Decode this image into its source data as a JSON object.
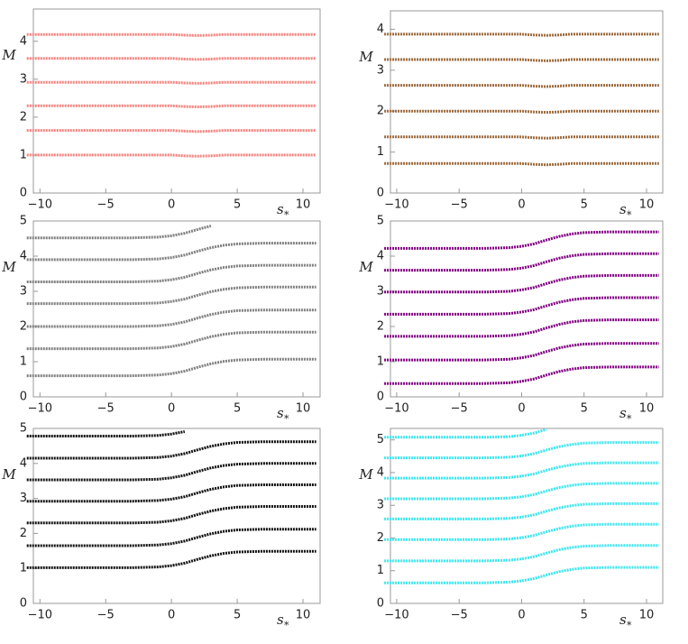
{
  "chart_data": [
    {
      "type": "line",
      "y_label": "M",
      "x_label": "s",
      "x_label_subscript": "*",
      "xlim": [
        -10.5,
        11.3
      ],
      "ylim": [
        0,
        4.85
      ],
      "xticks": [
        {
          "value": -10,
          "label": "−10"
        },
        {
          "value": -5,
          "label": "−5"
        },
        0,
        5,
        10
      ],
      "yticks": [
        0,
        1,
        2,
        3,
        4
      ],
      "x": [
        -11,
        -9,
        -7,
        -5,
        -3,
        -1,
        0,
        1,
        2,
        3,
        4,
        5,
        7,
        9,
        11
      ],
      "color": "#f4837d",
      "series": [
        {
          "values": [
            1,
            1,
            1,
            1,
            1,
            1,
            1,
            0.98,
            0.97,
            0.98,
            1,
            1,
            1,
            1,
            1
          ]
        },
        {
          "values": [
            1.65,
            1.65,
            1.65,
            1.65,
            1.65,
            1.65,
            1.65,
            1.63,
            1.62,
            1.63,
            1.65,
            1.65,
            1.65,
            1.65,
            1.65
          ]
        },
        {
          "values": [
            2.3,
            2.3,
            2.3,
            2.3,
            2.3,
            2.3,
            2.3,
            2.28,
            2.27,
            2.28,
            2.3,
            2.3,
            2.3,
            2.3,
            2.3
          ]
        },
        {
          "values": [
            2.92,
            2.92,
            2.92,
            2.92,
            2.92,
            2.92,
            2.92,
            2.9,
            2.89,
            2.9,
            2.92,
            2.92,
            2.92,
            2.92,
            2.92
          ]
        },
        {
          "values": [
            3.55,
            3.55,
            3.55,
            3.55,
            3.55,
            3.55,
            3.55,
            3.53,
            3.52,
            3.53,
            3.55,
            3.55,
            3.55,
            3.55,
            3.55
          ]
        },
        {
          "values": [
            4.18,
            4.18,
            4.18,
            4.18,
            4.18,
            4.18,
            4.18,
            4.16,
            4.15,
            4.16,
            4.18,
            4.18,
            4.18,
            4.18,
            4.18
          ]
        }
      ]
    },
    {
      "type": "line",
      "y_label": "M",
      "x_label": "s",
      "x_label_subscript": "*",
      "xlim": [
        -10.5,
        11.3
      ],
      "ylim": [
        0,
        4.45
      ],
      "xticks": [
        {
          "value": -10,
          "label": "−10"
        },
        {
          "value": -5,
          "label": "−5"
        },
        0,
        5,
        10
      ],
      "yticks": [
        0,
        1,
        2,
        3,
        4
      ],
      "x": [
        -11,
        -9,
        -7,
        -5,
        -3,
        -1,
        0,
        1,
        2,
        3,
        4,
        5,
        7,
        9,
        11
      ],
      "color": "#9c6a3c",
      "series": [
        {
          "values": [
            0.72,
            0.72,
            0.72,
            0.72,
            0.72,
            0.72,
            0.72,
            0.7,
            0.69,
            0.7,
            0.72,
            0.72,
            0.72,
            0.72,
            0.72
          ]
        },
        {
          "values": [
            1.37,
            1.37,
            1.37,
            1.37,
            1.37,
            1.37,
            1.37,
            1.35,
            1.34,
            1.35,
            1.37,
            1.37,
            1.37,
            1.37,
            1.37
          ]
        },
        {
          "values": [
            2,
            2,
            2,
            2,
            2,
            2,
            2,
            1.98,
            1.97,
            1.98,
            2,
            2,
            2,
            2,
            2
          ]
        },
        {
          "values": [
            2.63,
            2.63,
            2.63,
            2.63,
            2.63,
            2.63,
            2.63,
            2.61,
            2.6,
            2.61,
            2.63,
            2.63,
            2.63,
            2.63,
            2.63
          ]
        },
        {
          "values": [
            3.26,
            3.26,
            3.26,
            3.26,
            3.26,
            3.26,
            3.26,
            3.24,
            3.23,
            3.24,
            3.26,
            3.26,
            3.26,
            3.26,
            3.26
          ]
        },
        {
          "values": [
            3.88,
            3.88,
            3.88,
            3.88,
            3.88,
            3.88,
            3.88,
            3.86,
            3.85,
            3.86,
            3.88,
            3.88,
            3.88,
            3.88,
            3.88
          ]
        }
      ]
    },
    {
      "type": "line",
      "y_label": "M",
      "x_label": "s",
      "x_label_subscript": "*",
      "xlim": [
        -10.5,
        11.3
      ],
      "ylim": [
        0,
        5
      ],
      "xticks": [
        {
          "value": -10,
          "label": "−10"
        },
        {
          "value": -5,
          "label": "−5"
        },
        0,
        5,
        10
      ],
      "yticks": [
        0,
        1,
        2,
        3,
        4,
        5
      ],
      "x": [
        -11,
        -9,
        -7,
        -5,
        -3,
        -1,
        0,
        1,
        2,
        3,
        4,
        5,
        7,
        9,
        11
      ],
      "color": "#808080",
      "series": [
        {
          "values": [
            0.6,
            0.6,
            0.6,
            0.6,
            0.6,
            0.62,
            0.66,
            0.73,
            0.84,
            0.94,
            1.01,
            1.05,
            1.07,
            1.07,
            1.07
          ]
        },
        {
          "values": [
            1.37,
            1.37,
            1.37,
            1.37,
            1.37,
            1.39,
            1.43,
            1.5,
            1.61,
            1.71,
            1.78,
            1.82,
            1.84,
            1.84,
            1.84
          ]
        },
        {
          "values": [
            2,
            2,
            2,
            2,
            2,
            2.02,
            2.06,
            2.13,
            2.24,
            2.34,
            2.41,
            2.45,
            2.47,
            2.47,
            2.47
          ]
        },
        {
          "values": [
            2.65,
            2.65,
            2.65,
            2.65,
            2.65,
            2.67,
            2.71,
            2.78,
            2.89,
            2.99,
            3.06,
            3.1,
            3.12,
            3.12,
            3.12
          ]
        },
        {
          "values": [
            3.27,
            3.27,
            3.27,
            3.27,
            3.27,
            3.29,
            3.33,
            3.4,
            3.51,
            3.61,
            3.68,
            3.72,
            3.74,
            3.74,
            3.74
          ]
        },
        {
          "values": [
            3.9,
            3.9,
            3.9,
            3.9,
            3.9,
            3.92,
            3.96,
            4.03,
            4.14,
            4.24,
            4.31,
            4.35,
            4.37,
            4.37,
            4.37
          ]
        },
        {
          "values": [
            4.52,
            4.52,
            4.52,
            4.52,
            4.52,
            4.54,
            4.58,
            4.65,
            4.76,
            4.86,
            null,
            null,
            null,
            null,
            null
          ]
        }
      ]
    },
    {
      "type": "line",
      "y_label": "M",
      "x_label": "s",
      "x_label_subscript": "*",
      "xlim": [
        -10.5,
        11.3
      ],
      "ylim": [
        0,
        5
      ],
      "xticks": [
        {
          "value": -10,
          "label": "−10"
        },
        {
          "value": -5,
          "label": "−5"
        },
        0,
        5,
        10
      ],
      "yticks": [
        0,
        1,
        2,
        3,
        4,
        5
      ],
      "x": [
        -11,
        -9,
        -7,
        -5,
        -3,
        -1,
        0,
        1,
        2,
        3,
        4,
        5,
        7,
        9,
        11
      ],
      "color": "#800080",
      "series": [
        {
          "values": [
            0.38,
            0.38,
            0.38,
            0.38,
            0.38,
            0.4,
            0.44,
            0.51,
            0.62,
            0.72,
            0.79,
            0.83,
            0.85,
            0.85,
            0.85
          ]
        },
        {
          "values": [
            1.05,
            1.05,
            1.05,
            1.05,
            1.05,
            1.07,
            1.11,
            1.18,
            1.29,
            1.39,
            1.46,
            1.5,
            1.52,
            1.52,
            1.52
          ]
        },
        {
          "values": [
            1.72,
            1.72,
            1.72,
            1.72,
            1.72,
            1.74,
            1.78,
            1.85,
            1.96,
            2.06,
            2.13,
            2.17,
            2.19,
            2.19,
            2.19
          ]
        },
        {
          "values": [
            2.35,
            2.35,
            2.35,
            2.35,
            2.35,
            2.37,
            2.41,
            2.48,
            2.59,
            2.69,
            2.76,
            2.8,
            2.82,
            2.82,
            2.82
          ]
        },
        {
          "values": [
            2.98,
            2.98,
            2.98,
            2.98,
            2.98,
            3,
            3.04,
            3.11,
            3.22,
            3.32,
            3.39,
            3.43,
            3.45,
            3.45,
            3.45
          ]
        },
        {
          "values": [
            3.6,
            3.6,
            3.6,
            3.6,
            3.6,
            3.62,
            3.66,
            3.73,
            3.84,
            3.94,
            4.01,
            4.05,
            4.07,
            4.07,
            4.07
          ]
        },
        {
          "values": [
            4.22,
            4.22,
            4.22,
            4.22,
            4.22,
            4.24,
            4.28,
            4.35,
            4.46,
            4.56,
            4.63,
            4.67,
            4.69,
            4.69,
            4.69
          ]
        }
      ]
    },
    {
      "type": "line",
      "y_label": "M",
      "x_label": "s",
      "x_label_subscript": "*",
      "xlim": [
        -10.5,
        11.3
      ],
      "ylim": [
        0,
        5
      ],
      "xticks": [
        {
          "value": -10,
          "label": "−10"
        },
        {
          "value": -5,
          "label": "−5"
        },
        0,
        5,
        10
      ],
      "yticks": [
        0,
        1,
        2,
        3,
        4,
        5
      ],
      "x": [
        -11,
        -9,
        -7,
        -5,
        -3,
        -1,
        0,
        1,
        2,
        3,
        4,
        5,
        7,
        9,
        11
      ],
      "color": "#111111",
      "series": [
        {
          "values": [
            1.02,
            1.02,
            1.02,
            1.02,
            1.02,
            1.04,
            1.08,
            1.15,
            1.26,
            1.36,
            1.43,
            1.47,
            1.49,
            1.49,
            1.49
          ]
        },
        {
          "values": [
            1.65,
            1.65,
            1.65,
            1.65,
            1.65,
            1.67,
            1.71,
            1.78,
            1.89,
            1.99,
            2.06,
            2.1,
            2.12,
            2.12,
            2.12
          ]
        },
        {
          "values": [
            2.3,
            2.3,
            2.3,
            2.3,
            2.3,
            2.32,
            2.36,
            2.43,
            2.54,
            2.64,
            2.71,
            2.75,
            2.77,
            2.77,
            2.77
          ]
        },
        {
          "values": [
            2.92,
            2.92,
            2.92,
            2.92,
            2.92,
            2.94,
            2.98,
            3.05,
            3.16,
            3.26,
            3.33,
            3.37,
            3.39,
            3.39,
            3.39
          ]
        },
        {
          "values": [
            3.53,
            3.53,
            3.53,
            3.53,
            3.53,
            3.55,
            3.59,
            3.66,
            3.77,
            3.87,
            3.94,
            3.98,
            4,
            4,
            4
          ]
        },
        {
          "values": [
            4.15,
            4.15,
            4.15,
            4.15,
            4.15,
            4.17,
            4.21,
            4.28,
            4.39,
            4.49,
            4.56,
            4.6,
            4.62,
            4.62,
            4.62
          ]
        },
        {
          "values": [
            4.78,
            4.78,
            4.78,
            4.78,
            4.78,
            4.8,
            4.84,
            4.91,
            null,
            null,
            null,
            null,
            null,
            null,
            null
          ]
        }
      ]
    },
    {
      "type": "line",
      "y_label": "M",
      "x_label": "s",
      "x_label_subscript": "*",
      "xlim": [
        -10.5,
        11.3
      ],
      "ylim": [
        0,
        5.35
      ],
      "xticks": [
        {
          "value": -10,
          "label": "−10"
        },
        {
          "value": -5,
          "label": "−5"
        },
        0,
        5,
        10
      ],
      "yticks": [
        0,
        1,
        2,
        3,
        4,
        5
      ],
      "x": [
        -11,
        -9,
        -7,
        -5,
        -3,
        -1,
        0,
        1,
        2,
        3,
        4,
        5,
        7,
        9,
        11
      ],
      "color": "#3ee6f0",
      "series": [
        {
          "values": [
            0.63,
            0.63,
            0.63,
            0.63,
            0.63,
            0.65,
            0.69,
            0.76,
            0.87,
            0.97,
            1.04,
            1.08,
            1.1,
            1.1,
            1.1
          ]
        },
        {
          "values": [
            1.3,
            1.3,
            1.3,
            1.3,
            1.3,
            1.32,
            1.36,
            1.43,
            1.54,
            1.64,
            1.71,
            1.75,
            1.77,
            1.77,
            1.77
          ]
        },
        {
          "values": [
            1.95,
            1.95,
            1.95,
            1.95,
            1.95,
            1.97,
            2.01,
            2.08,
            2.19,
            2.29,
            2.36,
            2.4,
            2.42,
            2.42,
            2.42
          ]
        },
        {
          "values": [
            2.58,
            2.58,
            2.58,
            2.58,
            2.58,
            2.6,
            2.64,
            2.71,
            2.82,
            2.92,
            2.99,
            3.03,
            3.05,
            3.05,
            3.05
          ]
        },
        {
          "values": [
            3.2,
            3.2,
            3.2,
            3.2,
            3.2,
            3.22,
            3.26,
            3.33,
            3.44,
            3.54,
            3.61,
            3.65,
            3.67,
            3.67,
            3.67
          ]
        },
        {
          "values": [
            3.83,
            3.83,
            3.83,
            3.83,
            3.83,
            3.85,
            3.89,
            3.96,
            4.07,
            4.17,
            4.24,
            4.28,
            4.3,
            4.3,
            4.3
          ]
        },
        {
          "values": [
            4.45,
            4.45,
            4.45,
            4.45,
            4.45,
            4.47,
            4.51,
            4.58,
            4.69,
            4.79,
            4.86,
            4.9,
            4.92,
            4.92,
            4.92
          ]
        },
        {
          "values": [
            5.08,
            5.08,
            5.08,
            5.08,
            5.08,
            5.1,
            5.14,
            5.21,
            5.32,
            null,
            null,
            null,
            null,
            null,
            null
          ]
        }
      ]
    }
  ]
}
